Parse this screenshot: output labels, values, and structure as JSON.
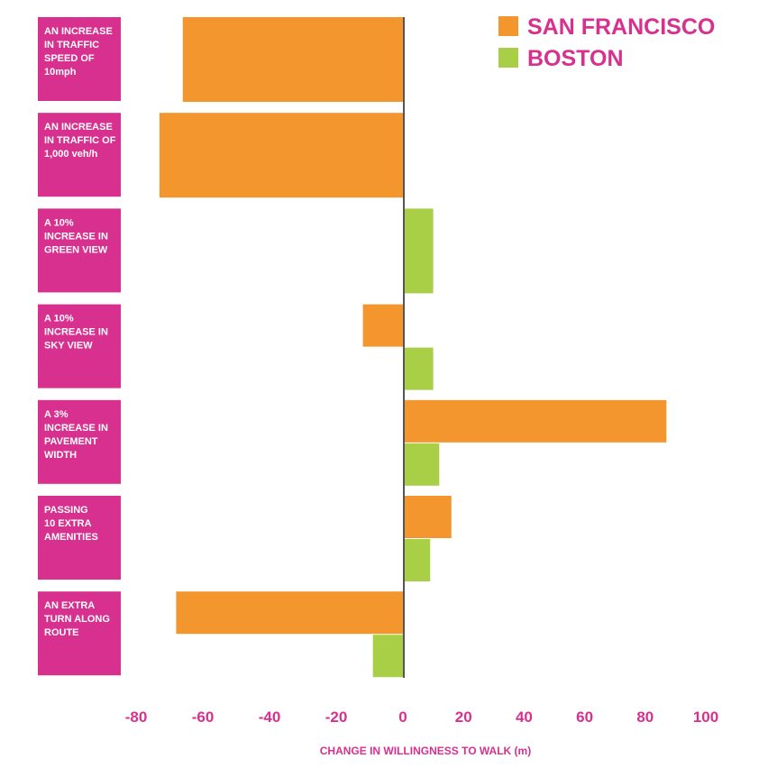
{
  "chart_data": {
    "type": "bar",
    "orientation": "horizontal",
    "categories": [
      [
        "AN INCREASE",
        "IN TRAFFIC",
        "SPEED OF",
        "10mph"
      ],
      [
        "AN INCREASE",
        "IN TRAFFIC OF",
        "1,000 veh/h"
      ],
      [
        "A 10%",
        "INCREASE IN",
        "GREEN VIEW"
      ],
      [
        "A 10%",
        "INCREASE IN",
        "SKY VIEW"
      ],
      [
        "A 3%",
        "INCREASE IN",
        "PAVEMENT",
        "WIDTH"
      ],
      [
        "PASSING",
        "10 EXTRA",
        "AMENITIES"
      ],
      [
        "AN EXTRA",
        "TURN ALONG",
        "ROUTE"
      ]
    ],
    "series": [
      {
        "name": "SAN FRANCISCO",
        "color": "#f4962e",
        "values": [
          -66,
          -73,
          null,
          -12,
          87,
          16,
          -68
        ]
      },
      {
        "name": "BOSTON",
        "color": "#a8cf45",
        "values": [
          null,
          null,
          10,
          10,
          12,
          9,
          -9
        ]
      }
    ],
    "xlabel": "CHANGE IN WILLINGNESS TO WALK (m)",
    "tick_labels": [
      "-80",
      "-60",
      "-40",
      "-20",
      "0",
      "20",
      "40",
      "60",
      "80",
      "100"
    ],
    "tick_values": [
      -80,
      -60,
      -40,
      -20,
      0,
      20,
      40,
      60,
      80,
      100
    ],
    "xlim": [
      -80,
      100
    ],
    "grid": false,
    "legend_position": "top-right",
    "colors": {
      "label_box": "#d8308f",
      "zero_line": "#555555",
      "tick_text": "#d8308f"
    }
  }
}
